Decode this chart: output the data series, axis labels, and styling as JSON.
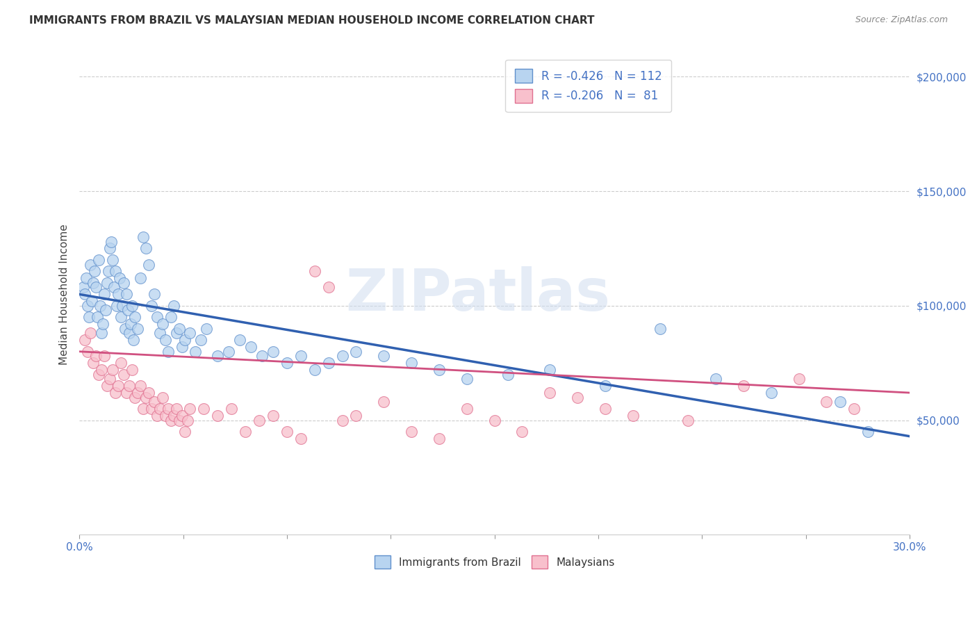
{
  "title": "IMMIGRANTS FROM BRAZIL VS MALAYSIAN MEDIAN HOUSEHOLD INCOME CORRELATION CHART",
  "source": "Source: ZipAtlas.com",
  "ylabel": "Median Household Income",
  "ytick_values": [
    50000,
    100000,
    150000,
    200000
  ],
  "legend_entries": [
    {
      "label": "R = -0.426   N = 112",
      "color": "#a8c8f0"
    },
    {
      "label": "R = -0.206   N =  81",
      "color": "#f0a8b8"
    }
  ],
  "bottom_legend": [
    "Immigrants from Brazil",
    "Malaysians"
  ],
  "watermark": "ZIPatlas",
  "blue_scatter_x": [
    0.15,
    0.2,
    0.25,
    0.3,
    0.35,
    0.4,
    0.45,
    0.5,
    0.55,
    0.6,
    0.65,
    0.7,
    0.75,
    0.8,
    0.85,
    0.9,
    0.95,
    1.0,
    1.05,
    1.1,
    1.15,
    1.2,
    1.25,
    1.3,
    1.35,
    1.4,
    1.45,
    1.5,
    1.55,
    1.6,
    1.65,
    1.7,
    1.75,
    1.8,
    1.85,
    1.9,
    1.95,
    2.0,
    2.1,
    2.2,
    2.3,
    2.4,
    2.5,
    2.6,
    2.7,
    2.8,
    2.9,
    3.0,
    3.1,
    3.2,
    3.3,
    3.4,
    3.5,
    3.6,
    3.7,
    3.8,
    4.0,
    4.2,
    4.4,
    4.6,
    5.0,
    5.4,
    5.8,
    6.2,
    6.6,
    7.0,
    7.5,
    8.0,
    8.5,
    9.0,
    9.5,
    10.0,
    11.0,
    12.0,
    13.0,
    14.0,
    15.5,
    17.0,
    19.0,
    21.0,
    23.0,
    25.0,
    27.5,
    28.5
  ],
  "blue_scatter_y": [
    108000,
    105000,
    112000,
    100000,
    95000,
    118000,
    102000,
    110000,
    115000,
    108000,
    95000,
    120000,
    100000,
    88000,
    92000,
    105000,
    98000,
    110000,
    115000,
    125000,
    128000,
    120000,
    108000,
    115000,
    100000,
    105000,
    112000,
    95000,
    100000,
    110000,
    90000,
    105000,
    98000,
    88000,
    92000,
    100000,
    85000,
    95000,
    90000,
    112000,
    130000,
    125000,
    118000,
    100000,
    105000,
    95000,
    88000,
    92000,
    85000,
    80000,
    95000,
    100000,
    88000,
    90000,
    82000,
    85000,
    88000,
    80000,
    85000,
    90000,
    78000,
    80000,
    85000,
    82000,
    78000,
    80000,
    75000,
    78000,
    72000,
    75000,
    78000,
    80000,
    78000,
    75000,
    72000,
    68000,
    70000,
    72000,
    65000,
    90000,
    68000,
    62000,
    58000,
    45000
  ],
  "pink_scatter_x": [
    0.2,
    0.3,
    0.4,
    0.5,
    0.6,
    0.7,
    0.8,
    0.9,
    1.0,
    1.1,
    1.2,
    1.3,
    1.4,
    1.5,
    1.6,
    1.7,
    1.8,
    1.9,
    2.0,
    2.1,
    2.2,
    2.3,
    2.4,
    2.5,
    2.6,
    2.7,
    2.8,
    2.9,
    3.0,
    3.1,
    3.2,
    3.3,
    3.4,
    3.5,
    3.6,
    3.7,
    3.8,
    3.9,
    4.0,
    4.5,
    5.0,
    5.5,
    6.0,
    6.5,
    7.0,
    7.5,
    8.0,
    8.5,
    9.0,
    9.5,
    10.0,
    11.0,
    12.0,
    13.0,
    14.0,
    15.0,
    16.0,
    17.0,
    18.0,
    19.0,
    20.0,
    22.0,
    24.0,
    26.0,
    27.0,
    28.0
  ],
  "pink_scatter_y": [
    85000,
    80000,
    88000,
    75000,
    78000,
    70000,
    72000,
    78000,
    65000,
    68000,
    72000,
    62000,
    65000,
    75000,
    70000,
    62000,
    65000,
    72000,
    60000,
    62000,
    65000,
    55000,
    60000,
    62000,
    55000,
    58000,
    52000,
    55000,
    60000,
    52000,
    55000,
    50000,
    52000,
    55000,
    50000,
    52000,
    45000,
    50000,
    55000,
    55000,
    52000,
    55000,
    45000,
    50000,
    52000,
    45000,
    42000,
    115000,
    108000,
    50000,
    52000,
    58000,
    45000,
    42000,
    55000,
    50000,
    45000,
    62000,
    60000,
    55000,
    52000,
    50000,
    65000,
    68000,
    58000,
    55000
  ],
  "blue_line_x": [
    0,
    30
  ],
  "blue_line_y": [
    105000,
    43000
  ],
  "pink_line_x": [
    0,
    30
  ],
  "pink_line_y": [
    80000,
    62000
  ],
  "xmin": 0,
  "xmax": 30,
  "ymin": 0,
  "ymax": 210000,
  "num_xticks": 9,
  "title_fontsize": 11,
  "source_fontsize": 9
}
